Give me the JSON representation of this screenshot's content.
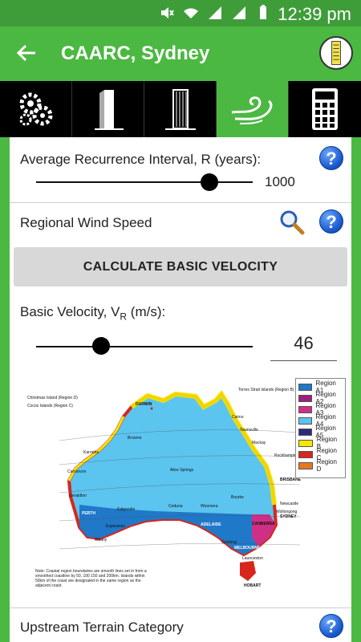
{
  "status": {
    "time": "12:39 pm"
  },
  "header": {
    "title": "CAARC, Sydney"
  },
  "tabs": [
    {
      "icon": "gears-icon"
    },
    {
      "icon": "tower-icon"
    },
    {
      "icon": "building-icon"
    },
    {
      "icon": "wind-icon",
      "active": true
    },
    {
      "icon": "calculator-icon"
    }
  ],
  "ari": {
    "label": "Average Recurrence Interval, R (years):",
    "value": "1000",
    "slider_position": 0.8
  },
  "regional": {
    "label": "Regional Wind Speed"
  },
  "calculate_button": "CALCULATE BASIC VELOCITY",
  "basic_velocity": {
    "label_main": "Basic Velocity, V",
    "label_sub": "R",
    "label_unit": " (m/s):",
    "value": "46",
    "slider_position": 0.3
  },
  "map": {
    "legend": [
      {
        "label": "Region A1",
        "color": "#1f78c8"
      },
      {
        "label": "Region A2",
        "color": "#9b1f7b"
      },
      {
        "label": "Region A3",
        "color": "#d02f86"
      },
      {
        "label": "Region A4",
        "color": "#5bc4ef"
      },
      {
        "label": "Region A5",
        "color": "#2c2a79"
      },
      {
        "label": "Region B",
        "color": "#f5e800"
      },
      {
        "label": "Region C",
        "color": "#d8261c"
      },
      {
        "label": "Region D",
        "color": "#e57a1d"
      }
    ],
    "note_islands_b": "Torres Strait Islands (Region B)",
    "note_christmas": "Christmas Island (Region D)",
    "note_cocos": "Cocos Islands (Region C)",
    "cities": {
      "darwin": "DARWIN",
      "perth": "PERTH",
      "adelaide": "ADELAIDE",
      "melbourne": "MELBOURNE",
      "hobart": "HOBART",
      "brisbane": "BRISBANE",
      "sydney": "SYDNEY",
      "canberra": "CANBERRA",
      "alice_springs": "Alice Springs",
      "cairns": "Cairns",
      "townsville": "Townsville",
      "mackay": "Mackay",
      "broome": "Broome",
      "karratha": "Karratha",
      "carnarvon": "Carnarvon",
      "geraldton": "Geraldton",
      "kalgoorlie": "Kalgoorlie",
      "esperance": "Esperance",
      "albany": "Albany",
      "newcastle": "Newcastle",
      "wollongong": "Wollongong",
      "rockhampton": "Rockhampton",
      "bourke": "Bourke",
      "ceduna": "Ceduna",
      "woomera": "Woomera",
      "launceston": "Launceston",
      "geelong": "Geelong"
    },
    "note": "Note: Coastal region boundaries are smooth lines set in from a smoothed coastline by 50, 100 150 and 200km. Islands within 50km of the coast are designated in the same region as the adjacent coast."
  },
  "upstream": {
    "label": "Upstream Terrain Category"
  }
}
